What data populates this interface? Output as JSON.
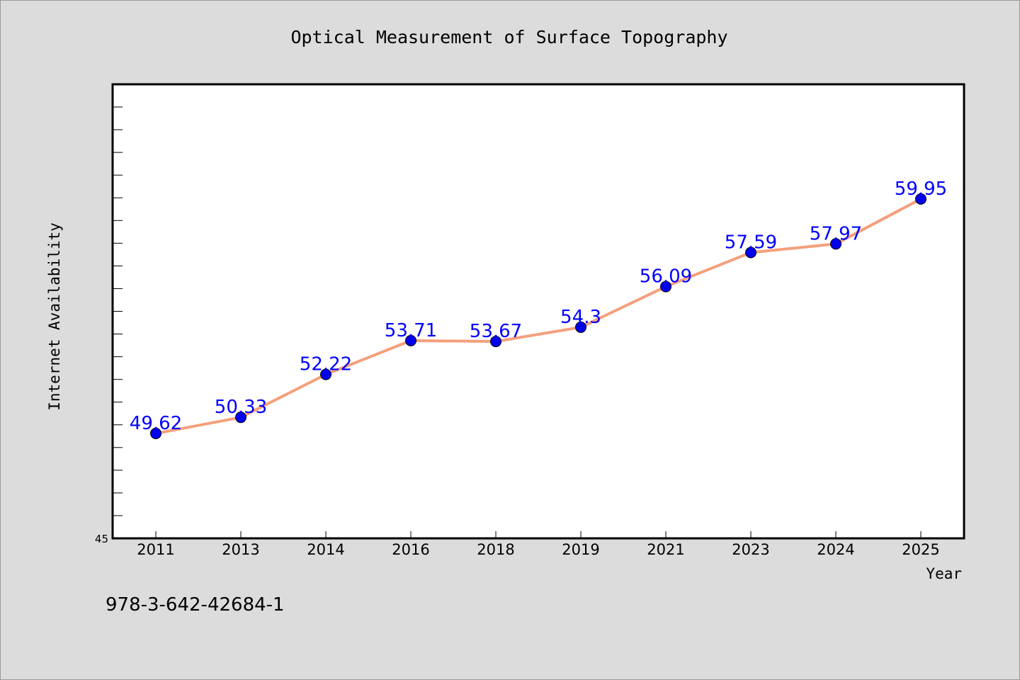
{
  "chart_data": {
    "type": "line",
    "title": "Optical Measurement of Surface Topography",
    "xlabel": "Year",
    "ylabel": "Internet Availability",
    "categories": [
      "2011",
      "2013",
      "2014",
      "2016",
      "2018",
      "2019",
      "2021",
      "2023",
      "2024",
      "2025"
    ],
    "series": [
      {
        "values": [
          49.62,
          50.33,
          52.22,
          53.71,
          53.67,
          54.3,
          56.09,
          57.59,
          57.97,
          59.95
        ]
      }
    ],
    "data_labels": [
      "49.62",
      "50.33",
      "52.22",
      "53.71",
      "53.67",
      "54.3",
      "56.09",
      "57.59",
      "57.97",
      "59.95"
    ],
    "ylim": [
      45,
      65
    ],
    "y_tick_labels": [
      "45"
    ],
    "grid": false,
    "legend": "none",
    "colors": {
      "line": "#f4a07c",
      "marker": "#0000ee",
      "data_label": "#0000ff",
      "plot_bg": "#ffffff",
      "page_bg": "#dcdcdc"
    }
  },
  "footer_code": "978-3-642-42684-1"
}
